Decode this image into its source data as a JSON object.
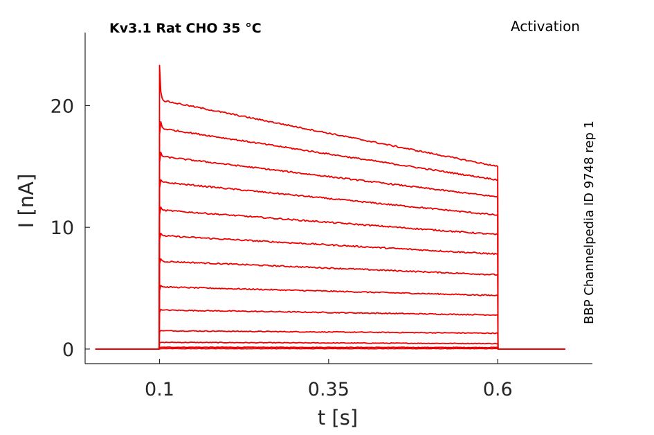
{
  "title_left": "Kv3.1  Rat  CHO  35 °C",
  "title_right": "Activation",
  "side_label": "BBP Channelpedia ID 9748 rep 1",
  "chart_data": {
    "type": "line",
    "title": "Kv3.1  Rat  CHO  35 °C",
    "xlabel": "t [s]",
    "ylabel": "I [nA]",
    "xlim": [
      -0.01,
      0.74
    ],
    "ylim": [
      -1.2,
      26
    ],
    "xticks": [
      0.1,
      0.35,
      0.6
    ],
    "xtick_labels": [
      "0.1",
      "0.35",
      "0.6"
    ],
    "yticks": [
      0,
      10,
      20
    ],
    "ytick_labels": [
      "0",
      "10",
      "20"
    ],
    "grid": false,
    "legend": "none",
    "trace_color": "#ee0000",
    "pulse_start": 0.1,
    "pulse_end": 0.6,
    "t_start": 0.005,
    "t_end": 0.7,
    "x": [
      0.005,
      0.0995,
      0.1,
      0.101,
      0.103,
      0.106,
      0.6,
      0.6005,
      0.7
    ],
    "series": [
      {
        "values": [
          0,
          0,
          0.01,
          0.02,
          0.03,
          0.03,
          0.03,
          0,
          0
        ]
      },
      {
        "values": [
          0,
          0,
          0.12,
          0.14,
          0.15,
          0.15,
          0.13,
          0,
          0
        ]
      },
      {
        "values": [
          0,
          0,
          0.5,
          0.55,
          0.55,
          0.55,
          0.45,
          0,
          0
        ]
      },
      {
        "values": [
          0,
          0,
          1.4,
          1.55,
          1.5,
          1.5,
          1.3,
          0,
          0
        ]
      },
      {
        "values": [
          0,
          0,
          3.0,
          3.3,
          3.2,
          3.2,
          2.8,
          0,
          0
        ]
      },
      {
        "values": [
          0,
          0,
          4.8,
          5.3,
          5.15,
          5.1,
          4.4,
          0,
          0
        ]
      },
      {
        "values": [
          0,
          0,
          7.0,
          7.5,
          7.3,
          7.2,
          6.1,
          0,
          0
        ]
      },
      {
        "values": [
          0,
          0,
          9.0,
          9.6,
          9.4,
          9.3,
          7.8,
          0,
          0
        ]
      },
      {
        "values": [
          0,
          0,
          11.0,
          11.8,
          11.5,
          11.4,
          9.4,
          0,
          0
        ]
      },
      {
        "values": [
          0,
          0,
          13.2,
          14.0,
          13.8,
          13.7,
          11.0,
          0,
          0
        ]
      },
      {
        "values": [
          0,
          0,
          15.3,
          16.4,
          15.9,
          15.8,
          12.5,
          0,
          0
        ]
      },
      {
        "values": [
          0,
          0,
          17.6,
          19.0,
          18.3,
          18.1,
          13.9,
          0,
          0
        ]
      },
      {
        "values": [
          0,
          0,
          23.3,
          21.5,
          20.7,
          20.4,
          15.0,
          0,
          0
        ]
      }
    ]
  }
}
